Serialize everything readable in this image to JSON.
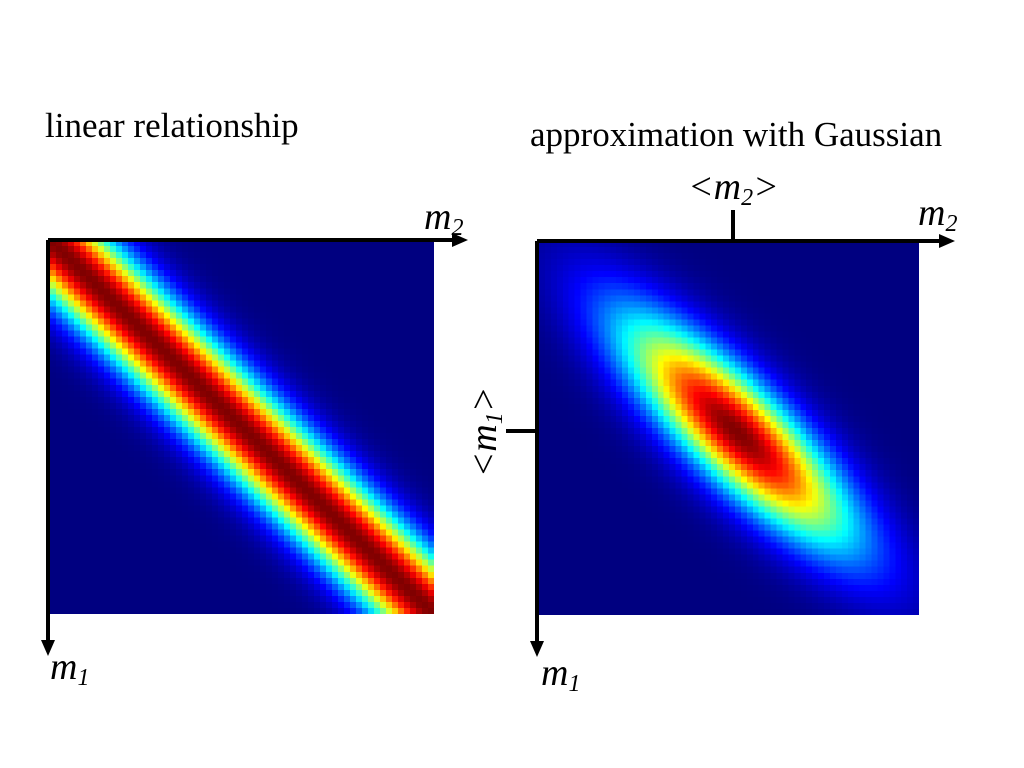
{
  "panels": [
    {
      "title": "linear relationship",
      "density": "linear",
      "x_axis_label": "m",
      "x_axis_sub": "2",
      "y_axis_label": "m",
      "y_axis_sub": "1"
    },
    {
      "title": "approximation with Gaussian",
      "density": "gaussian",
      "x_axis_label": "m",
      "x_axis_sub": "2",
      "y_axis_label": "m",
      "y_axis_sub": "1",
      "mean_x_label_prefix": "<m",
      "mean_x_label_sub": "2",
      "mean_x_label_suffix": ">",
      "mean_y_label_prefix": "<m",
      "mean_y_label_sub": "1",
      "mean_y_label_suffix": ">"
    }
  ],
  "colormap": "jet",
  "colors": {
    "axis": "#000000",
    "background": "#ffffff"
  }
}
